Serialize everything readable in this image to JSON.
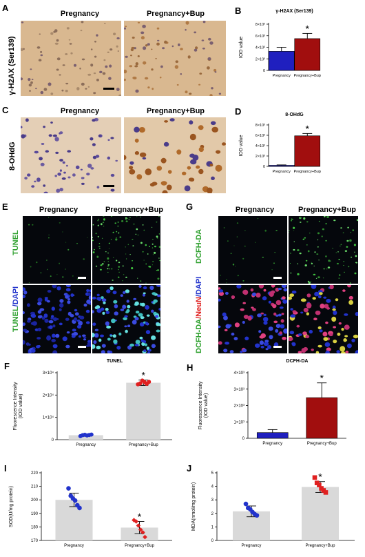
{
  "panels": {
    "A": {
      "letter": "A",
      "ylabel": "γ-H2AX (Ser139)",
      "col1": "Pregnancy",
      "col2": "Pregnancy+Bup"
    },
    "C": {
      "letter": "C",
      "ylabel": "8-OHdG",
      "col1": "Pregnancy",
      "col2": "Pregnancy+Bup"
    },
    "E": {
      "letter": "E",
      "col1": "Pregnancy",
      "col2": "Pregnancy+Bup",
      "row1": "TUNEL",
      "row2": "TUNEL/DAPI",
      "row2_part1": "TUNEL",
      "row2_part2": "/DAPI"
    },
    "G": {
      "letter": "G",
      "col1": "Pregnancy",
      "col2": "Pregnancy+Bup",
      "row1": "DCFH-DA",
      "row2_part1": "DCFH-DA",
      "row2_part2": "/NeuN",
      "row2_part3": "/DAPI"
    }
  },
  "colors": {
    "pregnancy_bar": "#1f1fbf",
    "bup_bar": "#a10e0e",
    "gray_bar": "#d9d9d9",
    "blue_dot": "#2233cc",
    "red_dot": "#e02020",
    "tunel_green": "#2ea02e",
    "neun_red": "#e02020",
    "dapi_blue": "#2233cc"
  },
  "chart_data": [
    {
      "id": "B",
      "letter": "B",
      "type": "bar",
      "title": "γ-H2AX (Ser139)",
      "ylabel": "IOD value",
      "categories": [
        "Pregnancy",
        "Pregnancy+Bup"
      ],
      "values": [
        3300,
        5500
      ],
      "errors": [
        700,
        900
      ],
      "ylim": [
        0,
        8000
      ],
      "yticks": [
        0,
        2000,
        4000,
        6000,
        8000
      ],
      "ytick_labels": [
        "0",
        "2×10³",
        "4×10³",
        "6×10³",
        "8×10³"
      ],
      "significance": "*"
    },
    {
      "id": "D",
      "letter": "D",
      "type": "bar",
      "title": "8-OHdG",
      "ylabel": "IOD value",
      "categories": [
        "Pregnancy",
        "Pregnancy+Bup"
      ],
      "values": [
        200,
        5900
      ],
      "errors": [
        80,
        450
      ],
      "ylim": [
        0,
        8000
      ],
      "yticks": [
        0,
        2000,
        4000,
        6000,
        8000
      ],
      "ytick_labels": [
        "0",
        "2×10³",
        "4×10³",
        "6×10³",
        "8×10³"
      ],
      "significance": "*"
    },
    {
      "id": "F",
      "letter": "F",
      "type": "bar",
      "title": "TUNEL",
      "ylabel": "Fluorescence Intensity\n(IOD value)",
      "categories": [
        "Pregnancy",
        "Pregnancy+Bup"
      ],
      "values": [
        2000,
        25500
      ],
      "errors": [
        300,
        1200
      ],
      "points": [
        [
          1600,
          2000,
          2200,
          1900,
          2100,
          2300
        ],
        [
          24800,
          25200,
          26500,
          25800,
          25000,
          25900
        ]
      ],
      "ylim": [
        0,
        30000
      ],
      "yticks": [
        0,
        10000,
        20000,
        30000
      ],
      "ytick_labels": [
        "0",
        "1×10⁴",
        "2×10⁴",
        "3×10⁴"
      ],
      "significance": "*"
    },
    {
      "id": "H",
      "letter": "H",
      "type": "bar",
      "title": "DCFH-DA",
      "ylabel": "Fluorescence Intensity\n(IOD value)",
      "categories": [
        "Pregnancy",
        "Pregnancy+Bup"
      ],
      "values": [
        350,
        2480
      ],
      "errors": [
        180,
        900
      ],
      "ylim": [
        0,
        4000
      ],
      "yticks": [
        0,
        1000,
        2000,
        3000,
        4000
      ],
      "ytick_labels": [
        "0",
        "1×10³",
        "2×10³",
        "3×10³",
        "4×10³"
      ],
      "significance": "*"
    },
    {
      "id": "I",
      "letter": "I",
      "type": "bar",
      "title": "",
      "ylabel": "SOD(U/mg protein)",
      "categories": [
        "Pregnancy",
        "Pregnancy+Bup"
      ],
      "values": [
        200,
        179.5
      ],
      "errors": [
        5,
        4.5
      ],
      "points": [
        [
          208.5,
          203,
          201,
          199.5,
          196,
          194
        ],
        [
          185,
          184,
          181,
          178,
          176,
          172.5
        ]
      ],
      "ylim": [
        170,
        220
      ],
      "yticks": [
        170,
        180,
        190,
        200,
        210,
        220
      ],
      "ytick_labels": [
        "170",
        "180",
        "190",
        "200",
        "210",
        "220"
      ],
      "significance": "*"
    },
    {
      "id": "J",
      "letter": "J",
      "type": "bar",
      "title": "",
      "ylabel": "MDA(nmol/mg protein)",
      "categories": [
        "Pregnancy",
        "Pregnancy+Bup"
      ],
      "values": [
        2.15,
        3.95
      ],
      "errors": [
        0.4,
        0.4
      ],
      "points": [
        [
          2.7,
          2.4,
          2.3,
          2.1,
          1.95,
          1.85
        ],
        [
          4.65,
          4.25,
          4.1,
          3.85,
          3.7,
          3.55
        ]
      ],
      "ylim": [
        0,
        5
      ],
      "yticks": [
        0,
        1,
        2,
        3,
        4,
        5
      ],
      "ytick_labels": [
        "0",
        "1",
        "2",
        "3",
        "4",
        "5"
      ],
      "significance": "*"
    }
  ]
}
